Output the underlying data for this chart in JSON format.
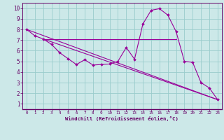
{
  "xlabel": "Windchill (Refroidissement éolien,°C)",
  "background_color": "#cce8e8",
  "grid_color": "#99cccc",
  "line_color": "#990099",
  "plot_bg": "#cce8e8",
  "xlim": [
    -0.5,
    23.5
  ],
  "ylim": [
    0.5,
    10.5
  ],
  "xticks": [
    0,
    1,
    2,
    3,
    4,
    5,
    6,
    7,
    8,
    9,
    10,
    11,
    12,
    13,
    14,
    15,
    16,
    17,
    18,
    19,
    20,
    21,
    22,
    23
  ],
  "yticks": [
    1,
    2,
    3,
    4,
    5,
    6,
    7,
    8,
    9,
    10
  ],
  "curve_x": [
    0,
    1,
    2,
    3,
    4,
    5,
    6,
    7,
    8,
    9,
    10,
    11,
    12,
    13,
    14,
    15,
    16,
    17,
    18,
    19,
    20,
    21,
    22,
    23
  ],
  "curve_y": [
    8.0,
    7.4,
    7.1,
    6.6,
    5.8,
    5.25,
    4.7,
    5.15,
    4.65,
    4.7,
    4.75,
    5.0,
    6.3,
    5.2,
    8.5,
    9.8,
    9.95,
    9.35,
    7.8,
    5.0,
    4.9,
    3.0,
    2.5,
    1.4
  ],
  "line1_x": [
    2,
    18
  ],
  "line1_y": [
    7.1,
    7.1
  ],
  "line2_x": [
    2,
    23
  ],
  "line2_y": [
    7.1,
    1.4
  ],
  "line3_x": [
    0,
    23
  ],
  "line3_y": [
    8.0,
    1.4
  ],
  "spine_color": "#660066",
  "tick_color": "#660066",
  "label_color": "#660066"
}
